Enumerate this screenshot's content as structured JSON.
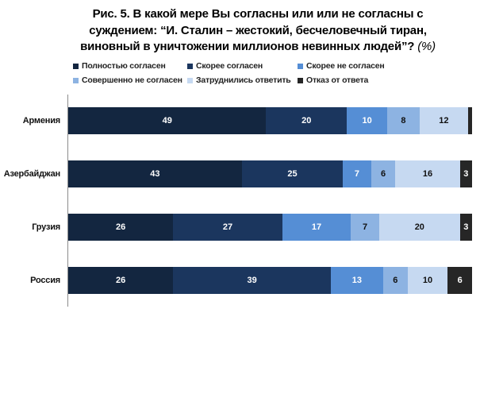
{
  "title": {
    "line1": "Рис. 5.  В какой мере Вы согласны или или не согласны с",
    "line2": "суждением: “И. Сталин – жестокий, бесчеловечный тиран,",
    "line3": "виновный в уничтожении миллионов невинных людей”?",
    "unit": "(%)"
  },
  "chart_data": {
    "type": "bar",
    "orientation": "horizontal",
    "stacked": true,
    "title": "Рис. 5. В какой мере Вы согласны или или не согласны с суждением: “И. Сталин – жестокий, бесчеловечный тиран, виновный в уничтожении миллионов невинных людей”? (%)",
    "xlabel": "",
    "ylabel": "",
    "xlim": [
      0,
      100
    ],
    "grid": false,
    "legend_position": "top",
    "categories": [
      "Армения",
      "Азербайджан",
      "Грузия",
      "Россия"
    ],
    "series": [
      {
        "name": "Полностью согласен",
        "color": "#132640",
        "label_color": "#ffffff",
        "values": [
          49,
          43,
          26,
          26
        ]
      },
      {
        "name": "Скорее согласен",
        "color": "#1b365e",
        "label_color": "#ffffff",
        "values": [
          20,
          25,
          27,
          39
        ]
      },
      {
        "name": "Скорее не согласен",
        "color": "#558ed5",
        "label_color": "#ffffff",
        "values": [
          10,
          7,
          17,
          13
        ]
      },
      {
        "name": "Совершенно не согласен",
        "color": "#8db3e2",
        "label_color": "#111111",
        "values": [
          8,
          6,
          7,
          6
        ]
      },
      {
        "name": "Затруднились ответить",
        "color": "#c6d9f1",
        "label_color": "#111111",
        "values": [
          12,
          16,
          20,
          10
        ]
      },
      {
        "name": "Отказ от ответа",
        "color": "#262626",
        "label_color": "#ffffff",
        "values": [
          1,
          3,
          3,
          6
        ]
      }
    ],
    "data_labels_shown": [
      [
        true,
        true,
        true,
        true,
        true,
        false
      ],
      [
        true,
        true,
        true,
        true,
        true,
        true
      ],
      [
        true,
        true,
        true,
        true,
        true,
        true
      ],
      [
        true,
        true,
        true,
        true,
        true,
        true
      ]
    ]
  }
}
